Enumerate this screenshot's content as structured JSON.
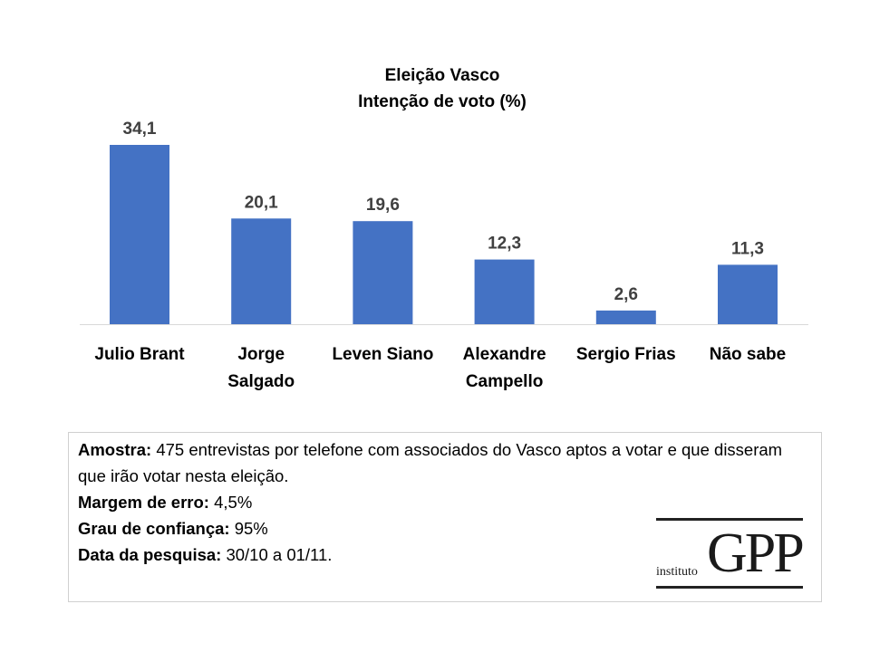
{
  "chart_data": {
    "type": "bar",
    "title": [
      "Eleição Vasco",
      "Intenção de voto (%)"
    ],
    "categories": [
      [
        "Julio Brant"
      ],
      [
        "Jorge",
        "Salgado"
      ],
      [
        "Leven Siano"
      ],
      [
        "Alexandre",
        "Campello"
      ],
      [
        "Sergio Frias"
      ],
      [
        "Não sabe"
      ]
    ],
    "values": [
      34.1,
      20.1,
      19.6,
      12.3,
      2.6,
      11.3
    ],
    "data_labels": [
      "34,1",
      "20,1",
      "19,6",
      "12,3",
      "2,6",
      "11,3"
    ],
    "ylim": [
      0,
      34.1
    ],
    "grid": false,
    "bar_color": "#4472C4"
  },
  "note": {
    "lines": [
      {
        "label": "Amostra:",
        "text": " 475 entrevistas por telefone com associados do Vasco aptos a votar e que disseram que irão votar nesta eleição."
      },
      {
        "label": "Margem de erro:",
        "text": " 4,5%"
      },
      {
        "label": "Grau de confiança:",
        "text": " 95%"
      },
      {
        "label": "Data da pesquisa:",
        "text": " 30/10 a 01/11."
      }
    ]
  },
  "logo": {
    "main": "GPP",
    "sub": "instituto"
  }
}
